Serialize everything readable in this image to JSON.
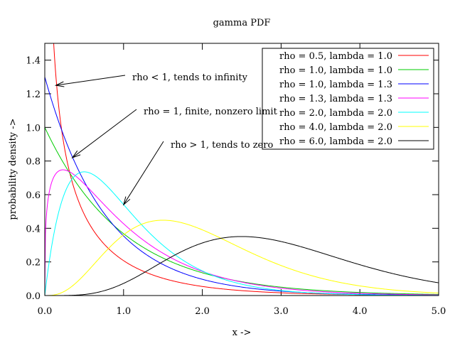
{
  "chart_data": {
    "type": "line",
    "title": "gamma PDF",
    "xlabel": "x ->",
    "ylabel": "probability density ->",
    "xlim": [
      0,
      5
    ],
    "ylim": [
      0,
      1.5
    ],
    "grid": false,
    "legend_position": "top-right",
    "x_ticks": [
      "0.0",
      "1.0",
      "2.0",
      "3.0",
      "4.0",
      "5.0"
    ],
    "y_ticks": [
      "0.0",
      "0.2",
      "0.4",
      "0.6",
      "0.8",
      "1.0",
      "1.2",
      "1.4"
    ],
    "series": [
      {
        "name": "rho = 0.5, lambda = 1.0",
        "rho": 0.5,
        "lambda": 1.0,
        "color": "#ff0000"
      },
      {
        "name": "rho = 1.0, lambda = 1.0",
        "rho": 1.0,
        "lambda": 1.0,
        "color": "#00cc00"
      },
      {
        "name": "rho = 1.0, lambda = 1.3",
        "rho": 1.0,
        "lambda": 1.3,
        "color": "#0000ff"
      },
      {
        "name": "rho = 1.3, lambda = 1.3",
        "rho": 1.3,
        "lambda": 1.3,
        "color": "#ff00ff"
      },
      {
        "name": "rho = 2.0, lambda = 2.0",
        "rho": 2.0,
        "lambda": 2.0,
        "color": "#00ffff"
      },
      {
        "name": "rho = 4.0, lambda = 2.0",
        "rho": 4.0,
        "lambda": 2.0,
        "color": "#ffff00"
      },
      {
        "name": "rho = 6.0, lambda = 2.0",
        "rho": 6.0,
        "lambda": 2.0,
        "color": "#000000"
      }
    ],
    "annotations": [
      {
        "text": "rho < 1, tends to infinity",
        "arrow_to": [
          0.14,
          1.25
        ]
      },
      {
        "text": "rho = 1, finite, nonzero limit",
        "arrow_to": [
          0.35,
          0.82
        ]
      },
      {
        "text": "rho > 1, tends to zero",
        "arrow_to": [
          1.0,
          0.54
        ]
      }
    ]
  }
}
